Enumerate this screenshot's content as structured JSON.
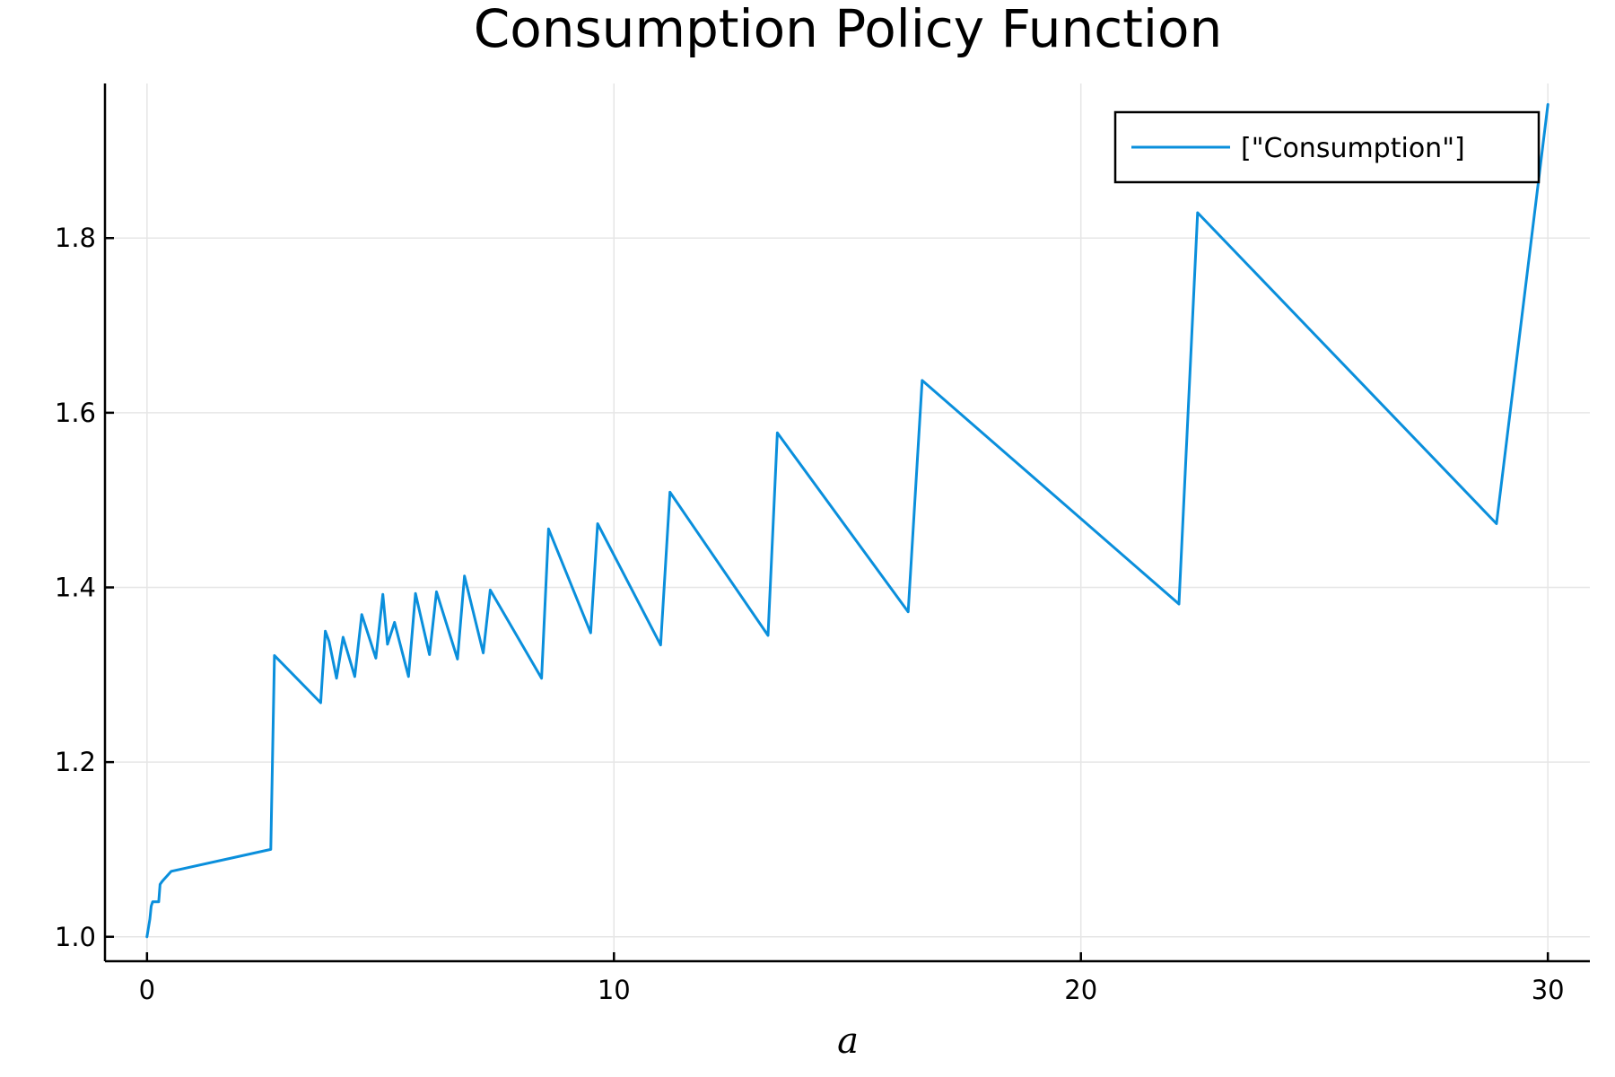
{
  "chart_data": {
    "type": "line",
    "title": "Consumption Policy Function",
    "xlabel": "a",
    "ylabel": "",
    "xlim": [
      -0.9,
      30.9
    ],
    "ylim": [
      0.972,
      1.977
    ],
    "xticks": [
      0,
      10,
      20,
      30
    ],
    "xtick_labels": [
      "0",
      "10",
      "20",
      "30"
    ],
    "yticks": [
      1.0,
      1.2,
      1.4,
      1.6,
      1.8
    ],
    "ytick_labels": [
      "1.0",
      "1.2",
      "1.4",
      "1.6",
      "1.8"
    ],
    "grid": true,
    "legend_position": "top-right",
    "series_color": "#0a8fdc",
    "series": [
      {
        "name": "[\"Consumption\"]",
        "x": [
          0.0,
          0.06,
          0.09,
          0.12,
          0.25,
          0.28,
          0.32,
          0.35,
          0.52,
          2.65,
          2.73,
          3.72,
          3.82,
          3.9,
          4.06,
          4.2,
          4.45,
          4.6,
          4.9,
          5.05,
          5.15,
          5.3,
          5.6,
          5.75,
          6.05,
          6.2,
          6.65,
          6.8,
          7.2,
          7.35,
          8.45,
          8.6,
          9.5,
          9.65,
          11.0,
          11.2,
          13.3,
          13.5,
          16.3,
          16.6,
          22.1,
          22.5,
          28.9,
          30.0
        ],
        "y": [
          1.0,
          1.02,
          1.035,
          1.04,
          1.04,
          1.06,
          1.063,
          1.065,
          1.075,
          1.1,
          1.322,
          1.268,
          1.35,
          1.338,
          1.296,
          1.343,
          1.298,
          1.369,
          1.319,
          1.392,
          1.335,
          1.36,
          1.298,
          1.393,
          1.323,
          1.395,
          1.318,
          1.413,
          1.325,
          1.397,
          1.296,
          1.467,
          1.348,
          1.473,
          1.334,
          1.509,
          1.345,
          1.577,
          1.372,
          1.637,
          1.381,
          1.829,
          1.473,
          1.953
        ]
      }
    ]
  }
}
